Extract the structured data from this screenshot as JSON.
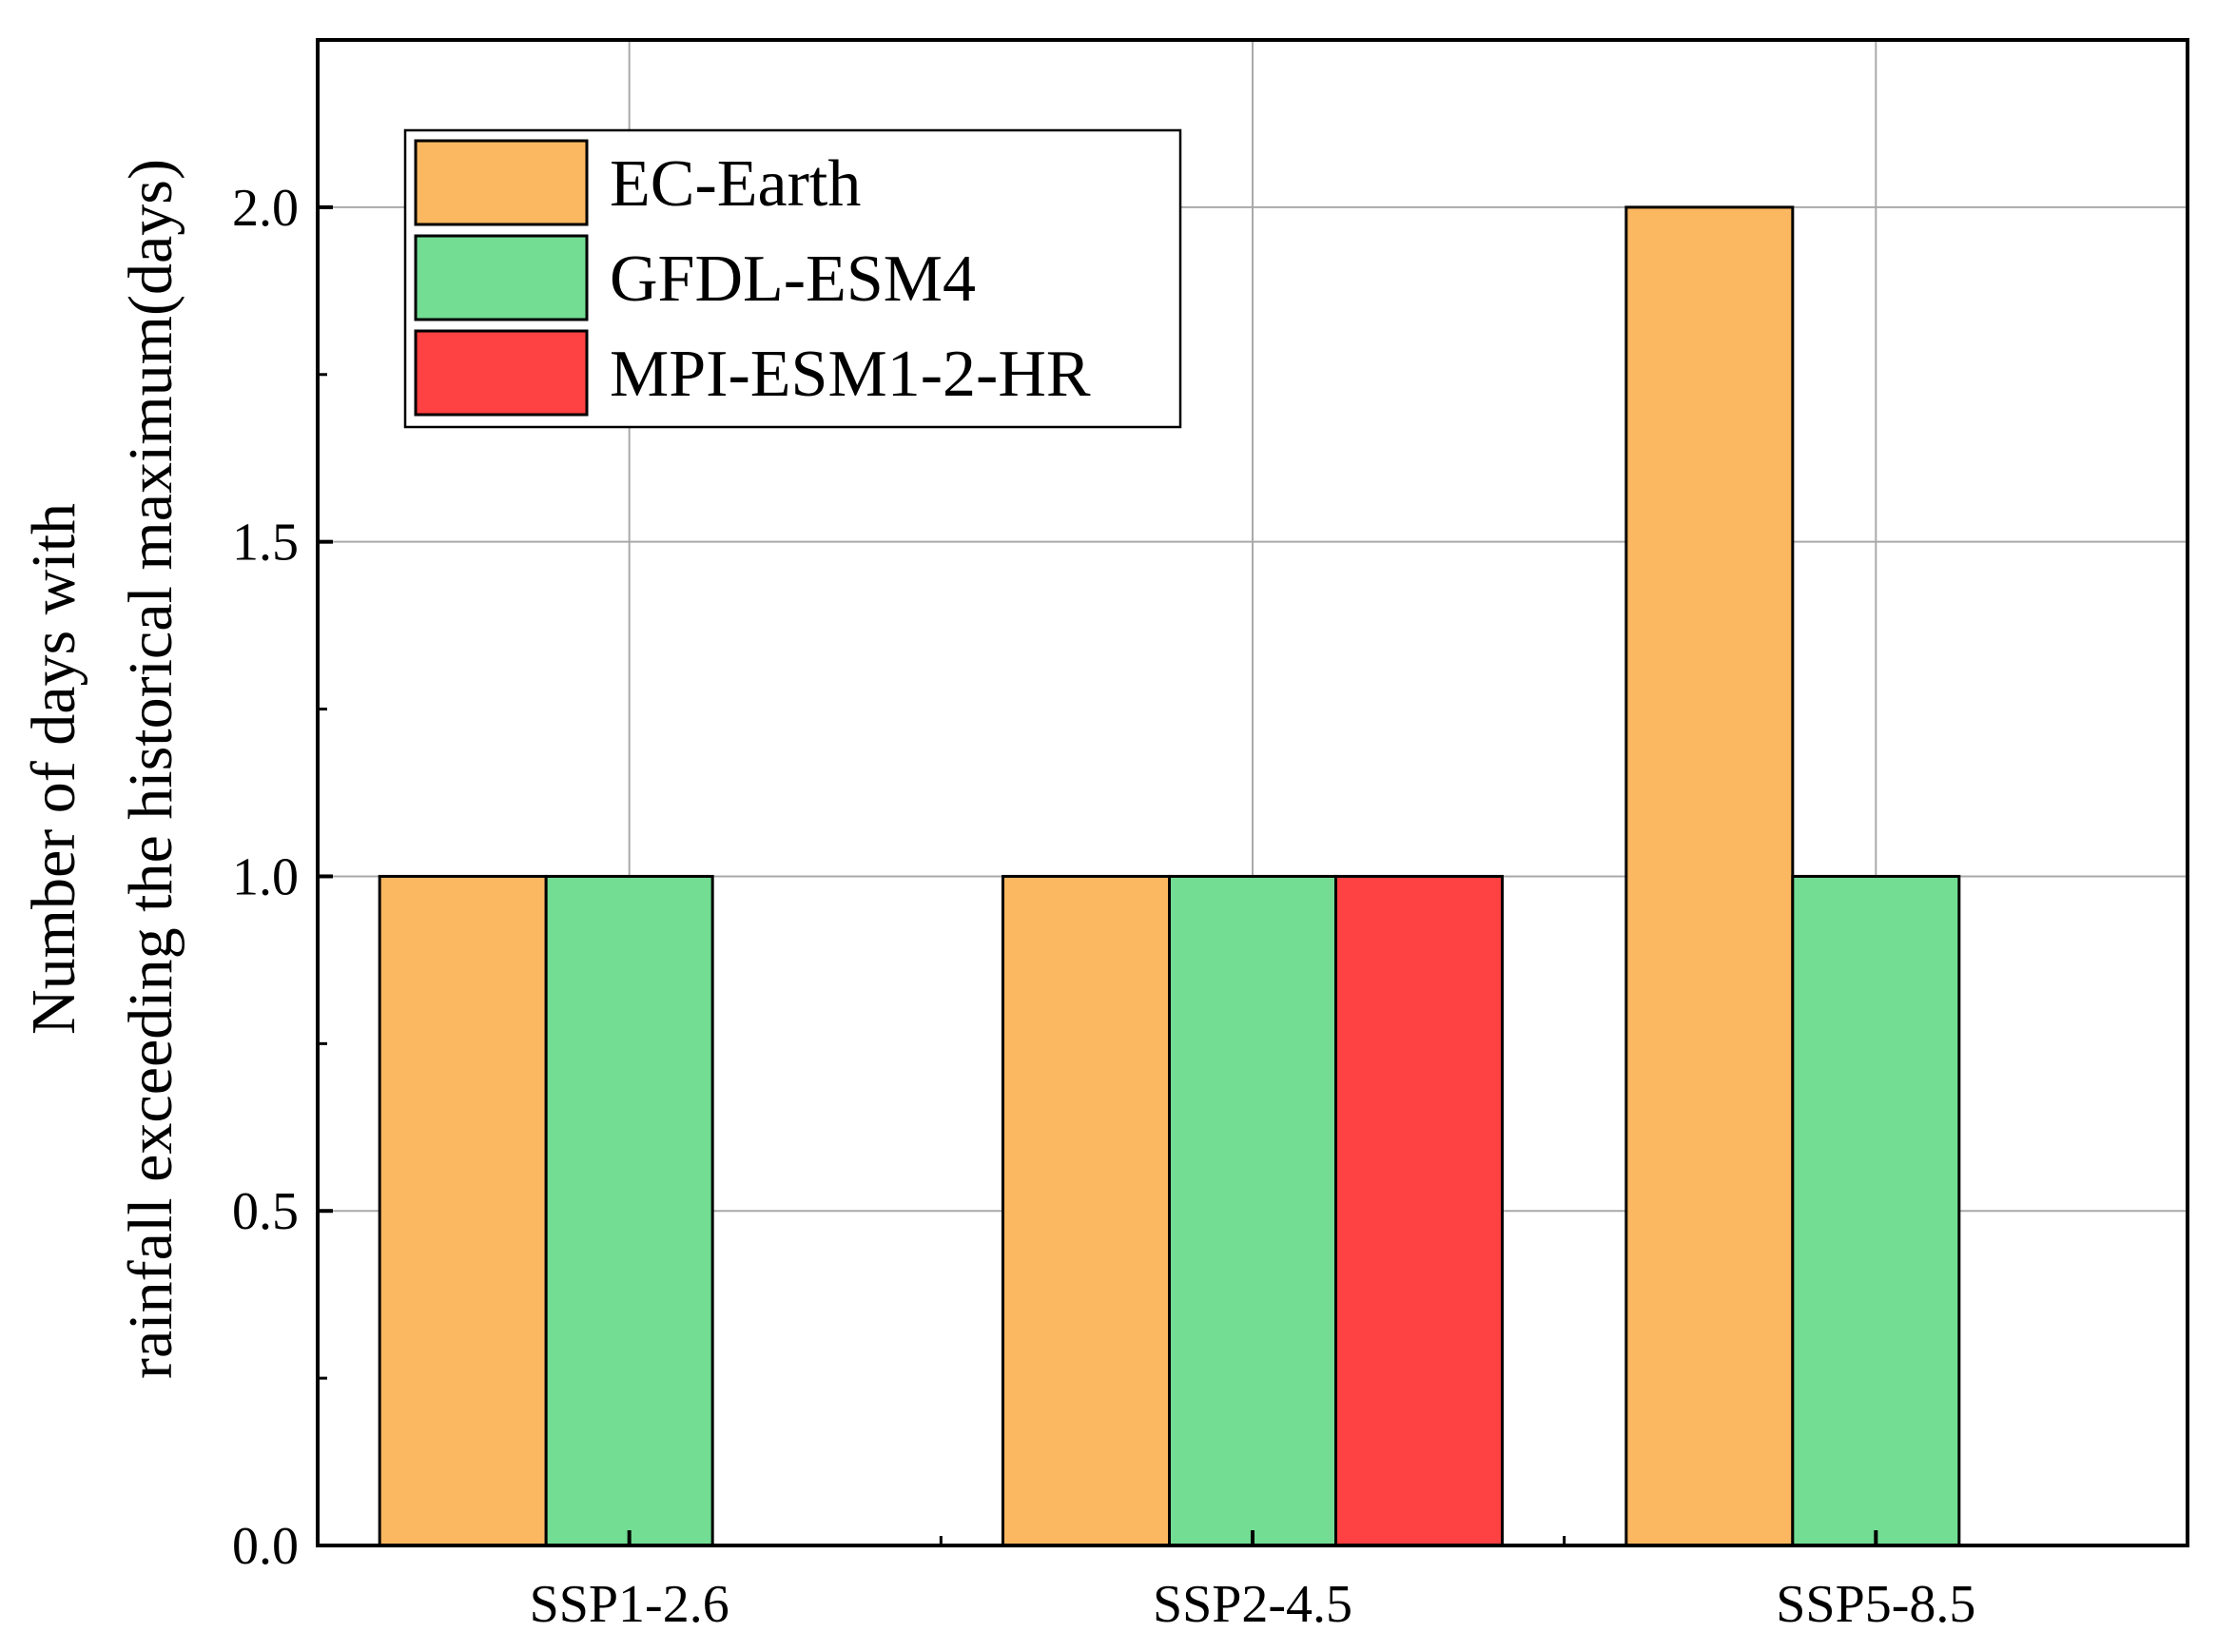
{
  "chart_data": {
    "type": "bar",
    "categories": [
      "SSP1-2.6",
      "SSP2-4.5",
      "SSP5-8.5"
    ],
    "series": [
      {
        "name": "EC-Earth",
        "values": [
          1,
          1,
          2
        ],
        "color": "#fcb861"
      },
      {
        "name": "GFDL-ESM4",
        "values": [
          1,
          1,
          1
        ],
        "color": "#72dd93"
      },
      {
        "name": "MPI-ESM1-2-HR",
        "values": [
          0,
          1,
          0
        ],
        "color": "#fe4142"
      }
    ],
    "ylabel_line1": "Number of days with",
    "ylabel_line2": "rainfall exceeding the historical maximum(days)",
    "xlabel": "",
    "ylim": [
      0,
      2.25
    ],
    "yticks": [
      0.0,
      0.5,
      1.0,
      1.5,
      2.0
    ],
    "ytick_labels": [
      "0.0",
      "0.5",
      "1.0",
      "1.5",
      "2.0"
    ],
    "grid": true,
    "legend_position": "top-left"
  }
}
